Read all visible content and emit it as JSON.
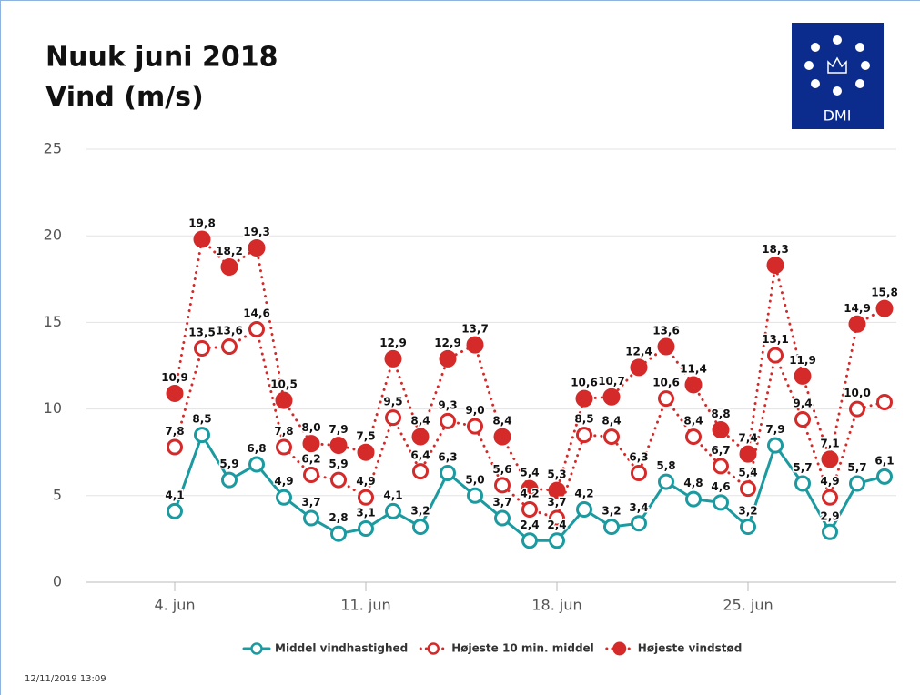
{
  "chart_data": {
    "type": "line",
    "title": "Nuuk juni 2018",
    "subtitle": "Vind (m/s)",
    "logo_text": "DMI",
    "timestamp": "12/11/2019 13:09",
    "categories": [
      "4. jun",
      null,
      null,
      null,
      null,
      null,
      null,
      "11. jun",
      null,
      null,
      null,
      null,
      null,
      null,
      "18. jun",
      null,
      null,
      null,
      null,
      null,
      null,
      "25. jun",
      null,
      null,
      null,
      null,
      null
    ],
    "ylim": [
      0,
      25
    ],
    "yticks": [
      0,
      5,
      10,
      15,
      20,
      25
    ],
    "grid": true,
    "legend": "bottom",
    "series": [
      {
        "name": "Middel vindhastighed",
        "color": "#1b9aa0",
        "line": "solid",
        "marker": "open",
        "values": [
          4.1,
          8.5,
          5.9,
          6.8,
          4.9,
          3.7,
          2.8,
          3.1,
          4.1,
          3.2,
          6.3,
          5.0,
          3.7,
          2.4,
          2.4,
          4.2,
          3.2,
          3.4,
          5.8,
          4.8,
          4.6,
          3.2,
          7.9,
          5.7,
          2.9,
          5.7,
          6.1
        ],
        "value_labels": [
          "4,1",
          "8,5",
          "5,9",
          "6,8",
          "4,9",
          "3,7",
          "2,8",
          "3,1",
          "4,1",
          "3,2",
          "6,3",
          "5,0",
          "3,7",
          "2,4",
          "2,4",
          "4,2",
          "3,2",
          "3,4",
          "5,8",
          "4,8",
          "4,6",
          "3,2",
          "7,9",
          "5,7",
          "2,9",
          "5,7",
          "6,1"
        ]
      },
      {
        "name": "Højeste 10 min. middel",
        "color": "#d42a2a",
        "line": "dotted",
        "marker": "open",
        "values": [
          7.8,
          13.5,
          13.6,
          14.6,
          7.8,
          6.2,
          5.9,
          4.9,
          9.5,
          6.4,
          9.3,
          9.0,
          5.6,
          4.2,
          3.7,
          8.5,
          8.4,
          6.3,
          10.6,
          8.4,
          6.7,
          5.4,
          13.1,
          9.4,
          4.9,
          10.0,
          10.4
        ],
        "value_labels": [
          "7,8",
          "13,5",
          "13,6",
          "14,6",
          "7,8",
          "6,2",
          "5,9",
          "4,9",
          "9,5",
          "6,4",
          "9,3",
          "9,0",
          "5,6",
          "4,2",
          "3,7",
          "8,5",
          "8,4",
          "6,3",
          "10,6",
          "8,4",
          "6,7",
          "5,4",
          "13,1",
          "9,4",
          "4,9",
          "10,0",
          null
        ]
      },
      {
        "name": "Højeste vindstød",
        "color": "#d42a2a",
        "line": "dotted",
        "marker": "filled",
        "values": [
          10.9,
          19.8,
          18.2,
          19.3,
          10.5,
          8.0,
          7.9,
          7.5,
          12.9,
          8.4,
          12.9,
          13.7,
          8.4,
          5.4,
          5.3,
          10.6,
          10.7,
          12.4,
          13.6,
          11.4,
          8.8,
          7.4,
          18.3,
          11.9,
          7.1,
          14.9,
          15.8
        ],
        "value_labels": [
          "10,9",
          "19,8",
          "18,2",
          "19,3",
          "10,5",
          "8,0",
          "7,9",
          "7,5",
          "12,9",
          "8,4",
          "12,9",
          "13,7",
          "8,4",
          "5,4",
          "5,3",
          "10,6",
          "10,7",
          "12,4",
          "13,6",
          "11,4",
          "8,8",
          "7,4",
          "18,3",
          "11,9",
          "7,1",
          "14,9",
          "15,8"
        ]
      }
    ]
  }
}
